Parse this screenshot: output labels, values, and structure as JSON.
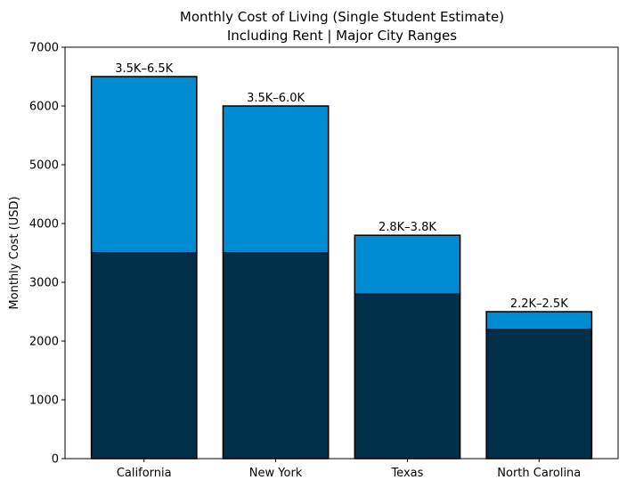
{
  "chart_data": {
    "type": "bar",
    "stacked": true,
    "title": "Monthly Cost of Living (Single Student Estimate)\nIncluding Rent | Major City Ranges",
    "title_lines": [
      "Monthly Cost of Living (Single Student Estimate)",
      "Including Rent | Major City Ranges"
    ],
    "xlabel": "",
    "ylabel": "Monthly Cost (USD)",
    "ylim": [
      0,
      7000
    ],
    "yticks": [
      0,
      1000,
      2000,
      3000,
      4000,
      5000,
      6000,
      7000
    ],
    "grid": false,
    "categories": [
      "California",
      "New York",
      "Texas",
      "North Carolina"
    ],
    "low": [
      3500,
      3500,
      2800,
      2200
    ],
    "high": [
      6500,
      6000,
      3800,
      2500
    ],
    "data_labels": [
      "3.5K–6.5K",
      "3.5K–6.0K",
      "2.8K–3.8K",
      "2.2K–2.5K"
    ],
    "colors": {
      "low": "#003049",
      "range": "#008bd2",
      "edge": "#000000"
    }
  }
}
